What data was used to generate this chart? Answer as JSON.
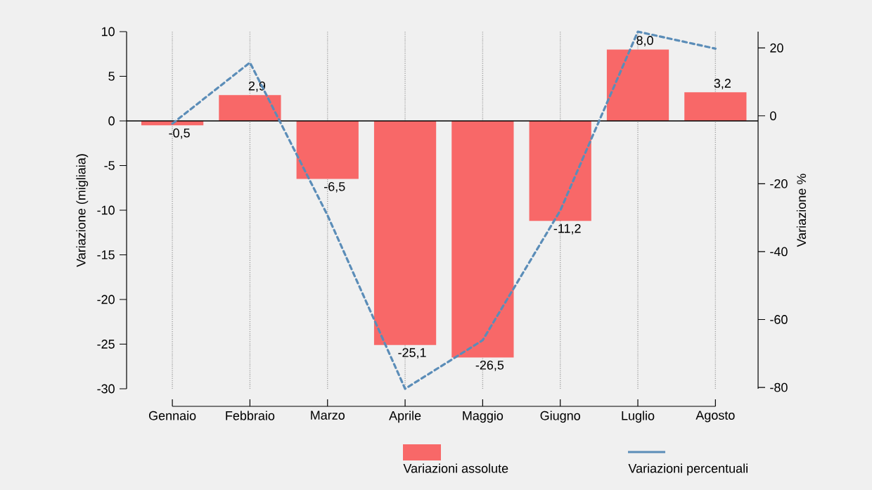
{
  "chart_data": {
    "type": "bar",
    "categories": [
      "Gennaio",
      "Febbraio",
      "Marzo",
      "Aprile",
      "Maggio",
      "Giugno",
      "Luglio",
      "Agosto"
    ],
    "series": [
      {
        "name": "Variazioni assolute",
        "color": "#f86868",
        "values": [
          -0.5,
          2.9,
          -6.5,
          -25.1,
          -26.5,
          -11.2,
          8.0,
          3.2
        ],
        "value_labels": [
          "-0,5",
          "2,9",
          "-6,5",
          "-25,1",
          "-26,5",
          "-11,2",
          "8,0",
          "3,2"
        ]
      },
      {
        "name": "Variazioni percentuali",
        "type": "line",
        "axis": "y2",
        "line_style": "dashed",
        "color": "#5b8db8",
        "values": [
          -2.3,
          15.7,
          -29.3,
          -80.4,
          -66.1,
          -27.9,
          24.8,
          19.8
        ]
      }
    ],
    "ylabel": "Variazione (migliaia)",
    "y2label": "Variazione %",
    "ylim": [
      -30,
      10
    ],
    "yticks": [
      -30,
      -25,
      -20,
      -15,
      -10,
      -5,
      0,
      5,
      10
    ],
    "y2lim": [
      -80.4,
      24.8
    ],
    "y2ticks": [
      -80,
      -60,
      -40,
      -20,
      0,
      20
    ],
    "ref_lines": [
      {
        "axis": "y",
        "value": 0,
        "color": "#000000"
      }
    ],
    "grid": "x",
    "legend": "bottom"
  }
}
